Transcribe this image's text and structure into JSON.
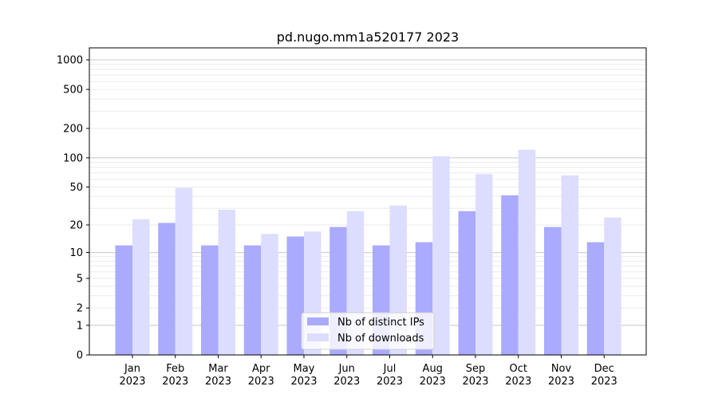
{
  "chart_data": {
    "type": "bar",
    "title": "pd.nugo.mm1a520177 2023",
    "xlabel": "",
    "ylabel": "",
    "yscale": "symlog (log10(1+y))",
    "ylim": [
      0,
      1300
    ],
    "yticks": [
      0,
      1,
      2,
      5,
      10,
      20,
      50,
      100,
      200,
      500,
      1000
    ],
    "grid": true,
    "legend_position": "bottom-center",
    "categories": [
      "Jan\n2023",
      "Feb\n2023",
      "Mar\n2023",
      "Apr\n2023",
      "May\n2023",
      "Jun\n2023",
      "Jul\n2023",
      "Aug\n2023",
      "Sep\n2023",
      "Oct\n2023",
      "Nov\n2023",
      "Dec\n2023"
    ],
    "series": [
      {
        "name": "Nb of distinct IPs",
        "color": "#aaaaff",
        "values": [
          12,
          21,
          12,
          12,
          15,
          19,
          12,
          13,
          28,
          41,
          19,
          13
        ]
      },
      {
        "name": "Nb of downloads",
        "color": "#ddddff",
        "values": [
          23,
          49,
          29,
          16,
          17,
          28,
          32,
          104,
          68,
          121,
          66,
          24
        ]
      }
    ]
  }
}
